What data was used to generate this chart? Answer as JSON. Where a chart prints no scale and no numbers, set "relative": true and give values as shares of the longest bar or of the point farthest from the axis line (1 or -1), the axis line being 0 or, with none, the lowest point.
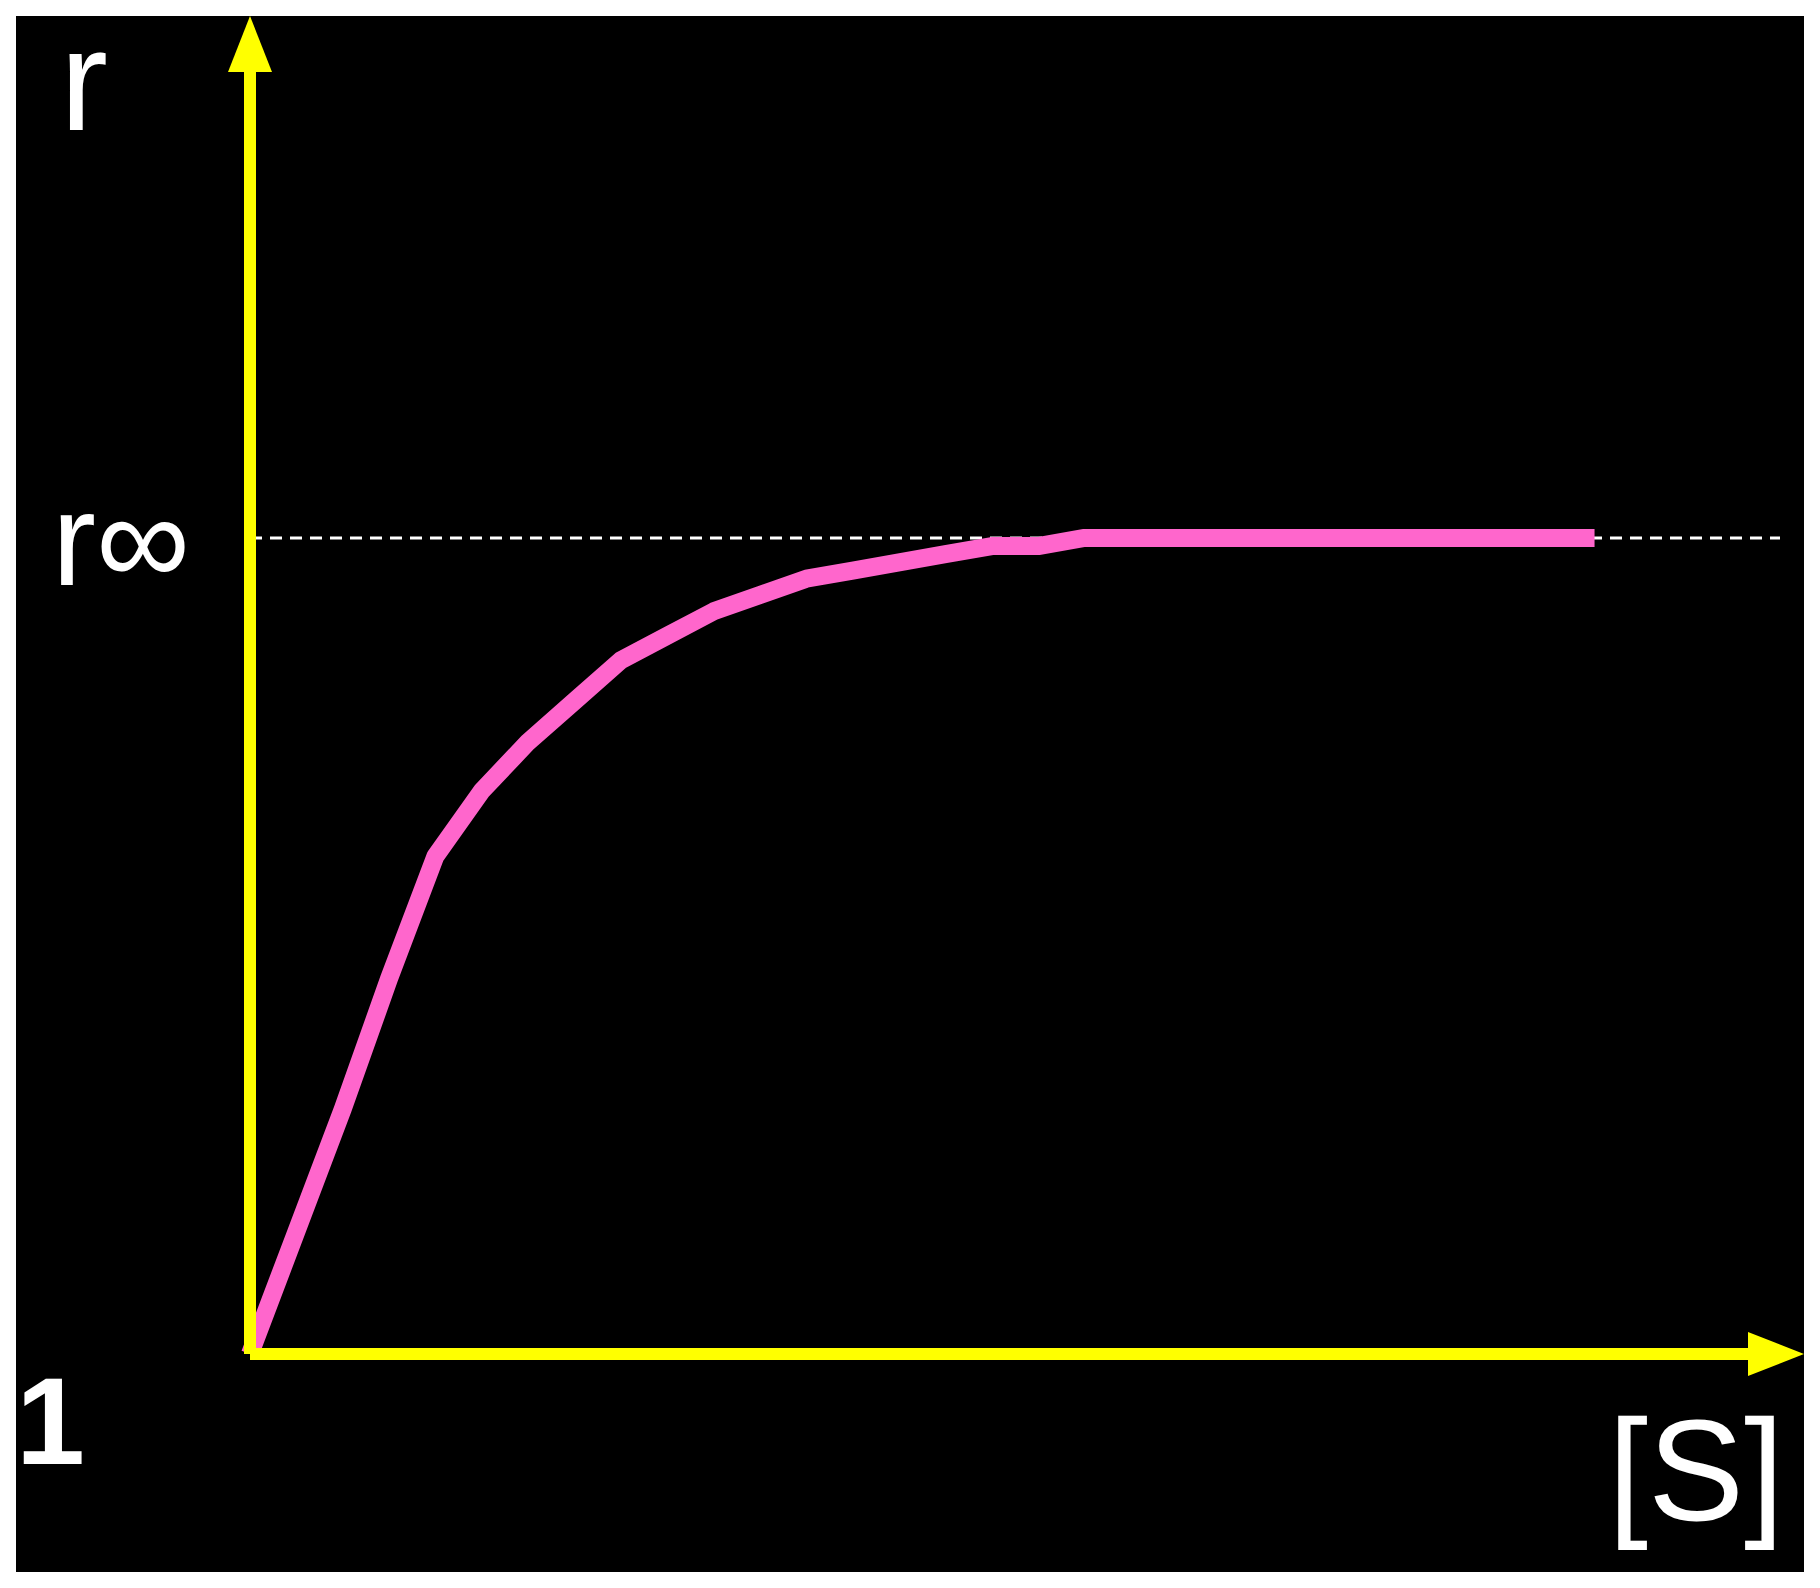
{
  "chart_data": {
    "type": "line",
    "relative": true,
    "ylabel": "r",
    "xlabel": "[S]",
    "categories": [
      null,
      null,
      null,
      null,
      null,
      null,
      null,
      null,
      null,
      null,
      null,
      null,
      null,
      null,
      null,
      null,
      null,
      null,
      null,
      null,
      null,
      null,
      null,
      null,
      null,
      null,
      null,
      null,
      null,
      null,
      null,
      null,
      null,
      null
    ],
    "series": [
      {
        "color": "#ff66cc",
        "values": [
          0,
          0.15,
          0.3,
          0.46,
          0.61,
          0.69,
          0.75,
          0.8,
          0.85,
          0.88,
          0.91,
          0.93,
          0.95,
          0.96,
          0.97,
          0.98,
          0.99,
          0.99,
          1,
          1,
          1,
          1,
          1,
          1,
          1,
          1,
          1,
          1,
          1,
          1,
          null,
          null,
          null,
          null
        ]
      }
    ],
    "ref_lines": [
      {
        "axis": "y",
        "value": 1,
        "label": "r∞",
        "color": "#ffffff",
        "line_style": "dashed"
      }
    ],
    "annotations": [
      "1"
    ],
    "marker": "none",
    "line_style": "solid"
  }
}
